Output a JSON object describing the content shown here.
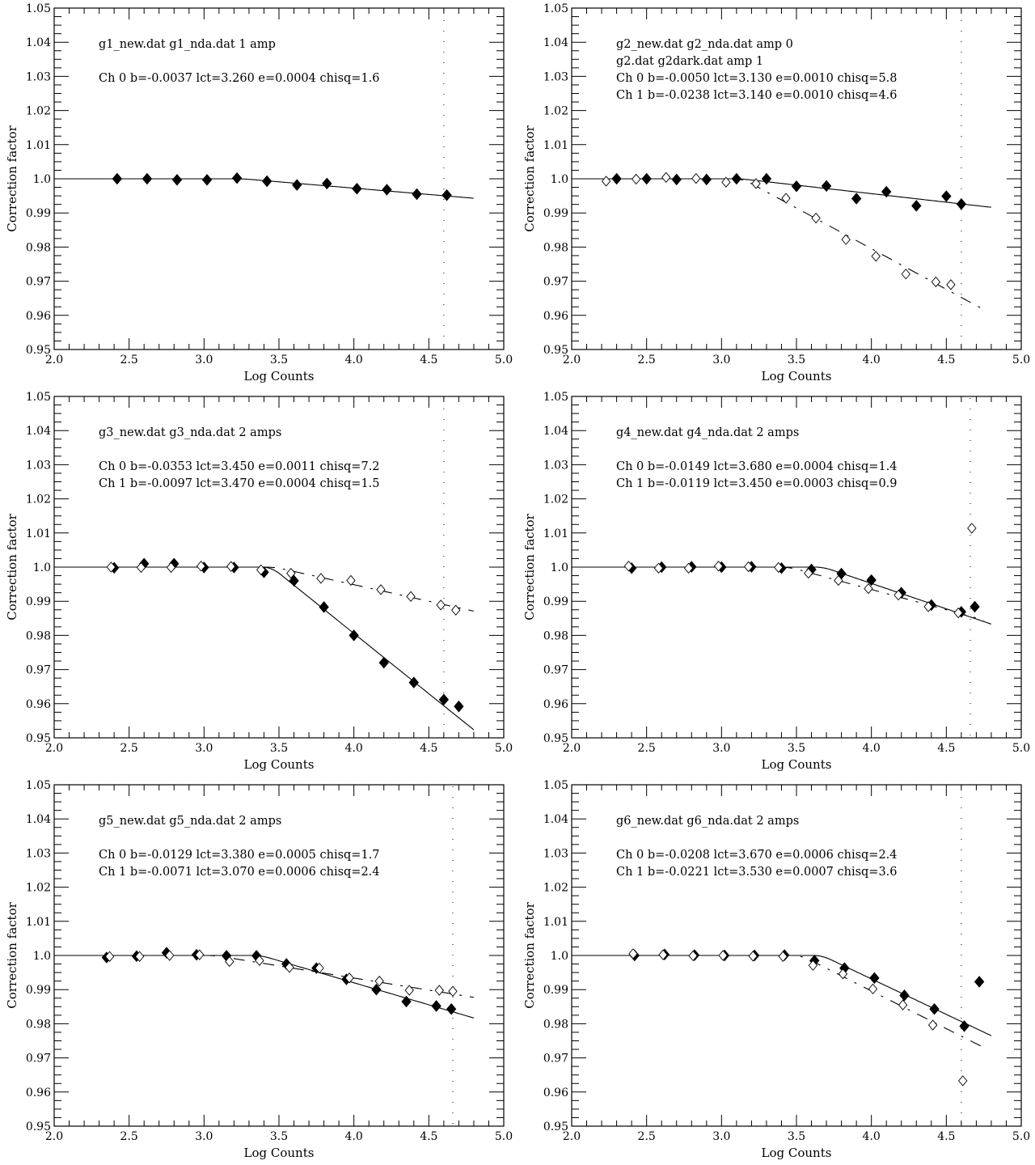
{
  "figure": {
    "layout": "3x2 grid",
    "colors": {
      "ink": "#000000",
      "background": "#ffffff"
    }
  },
  "chart_data": [
    {
      "id": "g1",
      "type": "scatter",
      "xlabel": "Log Counts",
      "ylabel": "Correction factor",
      "xlim": [
        2.0,
        5.0
      ],
      "ylim": [
        0.95,
        1.05
      ],
      "xticks": [
        "2.0",
        "2.5",
        "3.0",
        "3.5",
        "4.0",
        "4.5",
        "5.0"
      ],
      "yticks": [
        "0.95",
        "0.96",
        "0.97",
        "0.98",
        "0.99",
        "1.0",
        "1.01",
        "1.02",
        "1.03",
        "1.04",
        "1.05"
      ],
      "grid": false,
      "vline": 4.6,
      "annotations": [
        "g1_new.dat   g1_nda.dat    1 amp",
        "",
        "Ch 0   b=-0.0037 lct=3.260 e=0.0004 chisq=1.6"
      ],
      "series": [
        {
          "name": "Ch 0",
          "marker": "filled-diamond",
          "x": [
            2.42,
            2.62,
            2.82,
            3.02,
            3.22,
            3.42,
            3.62,
            3.82,
            4.02,
            4.22,
            4.42,
            4.62
          ],
          "y": [
            1.0,
            1.0,
            0.9997,
            0.9997,
            1.0002,
            0.9993,
            0.9982,
            0.9986,
            0.9971,
            0.9968,
            0.9955,
            0.9952
          ],
          "fit": {
            "b": -0.0037,
            "lct": 3.26,
            "style": "solid",
            "xmax": 4.8
          }
        }
      ]
    },
    {
      "id": "g2",
      "type": "scatter",
      "xlabel": "Log Counts",
      "ylabel": "Correction factor",
      "xlim": [
        2.0,
        5.0
      ],
      "ylim": [
        0.95,
        1.05
      ],
      "xticks": [
        "2.0",
        "2.5",
        "3.0",
        "3.5",
        "4.0",
        "4.5",
        "5.0"
      ],
      "yticks": [
        "0.95",
        "0.96",
        "0.97",
        "0.98",
        "0.99",
        "1.0",
        "1.01",
        "1.02",
        "1.03",
        "1.04",
        "1.05"
      ],
      "grid": false,
      "vline": 4.6,
      "annotations": [
        "g2_new.dat   g2_nda.dat    amp 0",
        "g2.dat   g2dark.dat    amp 1",
        "Ch 0   b=-0.0050 lct=3.130 e=0.0010 chisq=5.8",
        "Ch 1   b=-0.0238 lct=3.140 e=0.0010 chisq=4.6"
      ],
      "series": [
        {
          "name": "Ch 0",
          "marker": "filled-diamond",
          "x": [
            2.3,
            2.5,
            2.7,
            2.9,
            3.1,
            3.3,
            3.5,
            3.7,
            3.9,
            4.1,
            4.3,
            4.5,
            4.6
          ],
          "y": [
            1.0,
            1.0,
            0.9998,
            0.9998,
            1.0,
            1.0,
            0.9978,
            0.9979,
            0.9942,
            0.9962,
            0.9921,
            0.9949,
            0.9926
          ],
          "fit": {
            "b": -0.005,
            "lct": 3.13,
            "style": "solid",
            "xmax": 4.8
          }
        },
        {
          "name": "Ch 1",
          "marker": "open-diamond",
          "x": [
            2.23,
            2.43,
            2.63,
            2.83,
            3.03,
            3.23,
            3.43,
            3.63,
            3.83,
            4.03,
            4.23,
            4.43,
            4.53
          ],
          "y": [
            0.9993,
            0.9999,
            1.0004,
            1.0001,
            0.999,
            0.9986,
            0.9943,
            0.9885,
            0.9822,
            0.9773,
            0.9721,
            0.9698,
            0.969
          ],
          "fit": {
            "b": -0.0238,
            "lct": 3.14,
            "style": "dashed",
            "xmax": 4.75
          }
        }
      ]
    },
    {
      "id": "g3",
      "type": "scatter",
      "xlabel": "Log Counts",
      "ylabel": "Correction factor",
      "xlim": [
        2.0,
        5.0
      ],
      "ylim": [
        0.95,
        1.05
      ],
      "xticks": [
        "2.0",
        "2.5",
        "3.0",
        "3.5",
        "4.0",
        "4.5",
        "5.0"
      ],
      "yticks": [
        "0.95",
        "0.96",
        "0.97",
        "0.98",
        "0.99",
        "1.0",
        "1.01",
        "1.02",
        "1.03",
        "1.04",
        "1.05"
      ],
      "grid": false,
      "vline": 4.6,
      "annotations": [
        "g3_new.dat   g3_nda.dat    2 amps",
        "",
        "Ch 0   b=-0.0353 lct=3.450 e=0.0011 chisq=7.2",
        "Ch 1   b=-0.0097 lct=3.470 e=0.0004 chisq=1.5"
      ],
      "series": [
        {
          "name": "Ch 0",
          "marker": "filled-diamond",
          "x": [
            2.4,
            2.6,
            2.8,
            3.0,
            3.2,
            3.4,
            3.6,
            3.8,
            4.0,
            4.2,
            4.4,
            4.6,
            4.7
          ],
          "y": [
            0.9998,
            1.001,
            1.001,
            0.9999,
            0.9999,
            0.9985,
            0.996,
            0.9883,
            0.98,
            0.972,
            0.9662,
            0.9612,
            0.9592
          ],
          "fit": {
            "b": -0.0353,
            "lct": 3.45,
            "style": "solid",
            "xmax": 4.8
          }
        },
        {
          "name": "Ch 1",
          "marker": "open-diamond",
          "x": [
            2.38,
            2.58,
            2.78,
            2.98,
            3.18,
            3.38,
            3.58,
            3.78,
            3.98,
            4.18,
            4.38,
            4.58,
            4.68
          ],
          "y": [
            1.0,
            0.9999,
            0.9999,
            1.0003,
            1.0002,
            0.9992,
            0.9982,
            0.9967,
            0.9961,
            0.9934,
            0.9914,
            0.9889,
            0.9874
          ],
          "fit": {
            "b": -0.0097,
            "lct": 3.47,
            "style": "dashed",
            "xmax": 4.8
          }
        }
      ]
    },
    {
      "id": "g4",
      "type": "scatter",
      "xlabel": "Log Counts",
      "ylabel": "Correction factor",
      "xlim": [
        2.0,
        5.0
      ],
      "ylim": [
        0.95,
        1.05
      ],
      "xticks": [
        "2.0",
        "2.5",
        "3.0",
        "3.5",
        "4.0",
        "4.5",
        "5.0"
      ],
      "yticks": [
        "0.95",
        "0.96",
        "0.97",
        "0.98",
        "0.99",
        "1.0",
        "1.01",
        "1.02",
        "1.03",
        "1.04",
        "1.05"
      ],
      "grid": false,
      "vline": 4.66,
      "annotations": [
        "g4_new.dat   g4_nda.dat    2 amps",
        "",
        "Ch 0   b=-0.0149 lct=3.680 e=0.0004 chisq=1.4",
        "Ch 1   b=-0.0119 lct=3.450 e=0.0003 chisq=0.9"
      ],
      "series": [
        {
          "name": "Ch 0",
          "marker": "filled-diamond",
          "x": [
            2.4,
            2.6,
            2.8,
            3.0,
            3.2,
            3.4,
            3.6,
            3.8,
            4.0,
            4.2,
            4.4,
            4.6,
            4.69
          ],
          "y": [
            0.9997,
            1.0,
            1.0001,
            1.0,
            1.0001,
            0.9997,
            0.9993,
            0.9981,
            0.9962,
            0.9925,
            0.9889,
            0.9869,
            0.9884
          ],
          "fit": {
            "b": -0.0149,
            "lct": 3.68,
            "style": "solid",
            "xmax": 4.8
          }
        },
        {
          "name": "Ch 1",
          "marker": "open-diamond",
          "x": [
            2.38,
            2.58,
            2.78,
            2.98,
            3.18,
            3.38,
            3.58,
            3.78,
            3.98,
            4.18,
            4.38,
            4.58,
            4.67
          ],
          "y": [
            1.0003,
            0.9997,
            0.9997,
            1.0003,
            1.0001,
            0.9999,
            0.9982,
            0.9961,
            0.9937,
            0.9918,
            0.9884,
            0.9866,
            1.0114
          ],
          "fit": {
            "b": -0.0119,
            "lct": 3.45,
            "style": "dashed",
            "xmax": 4.75
          }
        }
      ]
    },
    {
      "id": "g5",
      "type": "scatter",
      "xlabel": "Log Counts",
      "ylabel": "Correction factor",
      "xlim": [
        2.0,
        5.0
      ],
      "ylim": [
        0.95,
        1.05
      ],
      "xticks": [
        "2.0",
        "2.5",
        "3.0",
        "3.5",
        "4.0",
        "4.5",
        "5.0"
      ],
      "yticks": [
        "0.95",
        "0.96",
        "0.97",
        "0.98",
        "0.99",
        "1.0",
        "1.01",
        "1.02",
        "1.03",
        "1.04",
        "1.05"
      ],
      "grid": false,
      "vline": 4.66,
      "annotations": [
        "g5_new.dat   g5_nda.dat    2 amps",
        "",
        "Ch 0   b=-0.0129 lct=3.380 e=0.0005 chisq=1.7",
        "Ch 1   b=-0.0071 lct=3.070 e=0.0006 chisq=2.4"
      ],
      "series": [
        {
          "name": "Ch 0",
          "marker": "filled-diamond",
          "x": [
            2.35,
            2.55,
            2.75,
            2.95,
            3.15,
            3.35,
            3.55,
            3.75,
            3.95,
            4.15,
            4.35,
            4.55,
            4.65
          ],
          "y": [
            0.9994,
            0.9998,
            1.0008,
            1.0002,
            0.9999,
            0.9999,
            0.9975,
            0.9963,
            0.993,
            0.99,
            0.9865,
            0.9852,
            0.9843
          ],
          "fit": {
            "b": -0.0129,
            "lct": 3.38,
            "style": "solid",
            "xmax": 4.8
          }
        },
        {
          "name": "Ch 1",
          "marker": "open-diamond",
          "x": [
            2.37,
            2.57,
            2.77,
            2.97,
            3.17,
            3.37,
            3.57,
            3.77,
            3.97,
            4.17,
            4.37,
            4.57,
            4.66
          ],
          "y": [
            0.9997,
            0.9997,
            1.0,
            1.0002,
            0.9982,
            0.9985,
            0.9965,
            0.9963,
            0.9934,
            0.9925,
            0.9898,
            0.9898,
            0.9895
          ],
          "fit": {
            "b": -0.0071,
            "lct": 3.07,
            "style": "dashed",
            "xmax": 4.8
          }
        }
      ]
    },
    {
      "id": "g6",
      "type": "scatter",
      "xlabel": "Log Counts",
      "ylabel": "Correction factor",
      "xlim": [
        2.0,
        5.0
      ],
      "ylim": [
        0.95,
        1.05
      ],
      "xticks": [
        "2.0",
        "2.5",
        "3.0",
        "3.5",
        "4.0",
        "4.5",
        "5.0"
      ],
      "yticks": [
        "0.95",
        "0.96",
        "0.97",
        "0.98",
        "0.99",
        "1.0",
        "1.01",
        "1.02",
        "1.03",
        "1.04",
        "1.05"
      ],
      "grid": false,
      "vline": 4.6,
      "annotations": [
        "g6_new.dat   g6_nda.dat    2 amps",
        "",
        "Ch 0   b=-0.0208 lct=3.670 e=0.0006 chisq=2.4",
        "Ch 1   b=-0.0221 lct=3.530 e=0.0007 chisq=3.6"
      ],
      "series": [
        {
          "name": "Ch 0",
          "marker": "filled-diamond",
          "x": [
            2.42,
            2.62,
            2.82,
            3.02,
            3.22,
            3.42,
            3.62,
            3.82,
            4.02,
            4.22,
            4.42,
            4.62,
            4.72
          ],
          "y": [
            1.0,
            1.0003,
            1.0001,
            1.0,
            1.0,
            1.0001,
            0.9985,
            0.9963,
            0.9934,
            0.9883,
            0.9843,
            0.9793,
            0.9923
          ],
          "fit": {
            "b": -0.0208,
            "lct": 3.67,
            "style": "solid",
            "xmax": 4.8
          }
        },
        {
          "name": "Ch 1",
          "marker": "open-diamond",
          "x": [
            2.41,
            2.61,
            2.81,
            3.01,
            3.21,
            3.41,
            3.61,
            3.81,
            4.01,
            4.21,
            4.41,
            4.61
          ],
          "y": [
            1.0005,
            1.0002,
            0.9999,
            1.0,
            0.9998,
            0.9997,
            0.9971,
            0.9946,
            0.9902,
            0.9855,
            0.9796,
            0.9633
          ],
          "fit": {
            "b": -0.0221,
            "lct": 3.53,
            "style": "dashed",
            "xmax": 4.75
          }
        }
      ]
    }
  ]
}
